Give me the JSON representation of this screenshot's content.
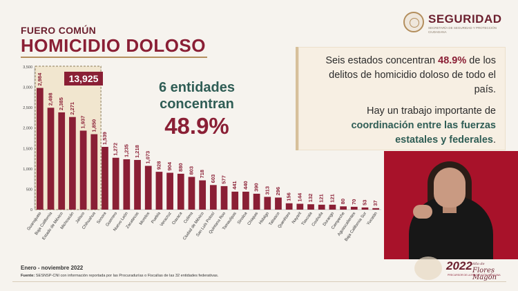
{
  "header": {
    "kicker": "FUERO COMÚN",
    "title": "HOMICIDIO DOLOSO"
  },
  "logo": {
    "name": "SEGURIDAD",
    "subtitle": "SECRETARÍA DE SEGURIDAD Y PROTECCIÓN CIUDADANA"
  },
  "highlight": {
    "total": "13,925"
  },
  "center_note": {
    "line1": "6 entidades",
    "line2": "concentran",
    "pct": "48.9%"
  },
  "infobox": {
    "p1_a": "Seis estados concentran ",
    "p1_b": "48.9%",
    "p1_c": " de los delitos de homicidio doloso de todo el país.",
    "p2_a": "Hay un trabajo importante de ",
    "p2_b": "coordinación entre las fuerzas estatales y federales",
    "p2_c": "."
  },
  "footer": {
    "period": "Enero - noviembre 2022",
    "source_label": "Fuente:",
    "source_text": " SESNSP-CNI con información reportada por las Procuradurías o Fiscalías de las 32 entidades federativas."
  },
  "year_logo": {
    "year": "2022",
    "name": "Flores Magón",
    "name_prefix": "Año de",
    "subtitle": "PRECURSOR DE LA REVOLUCIÓN MEXICANA"
  },
  "colors": {
    "bar": "#8a1f35",
    "accent_green": "#2f5d55",
    "highlight_box": "#8a1f35"
  },
  "chart_data": {
    "type": "bar",
    "ylim": [
      0,
      3500
    ],
    "yticks": [
      "0",
      "500",
      "1,000",
      "1,500",
      "2,000",
      "2,500",
      "3,000",
      "3,500"
    ],
    "ytick_values": [
      0,
      500,
      1000,
      1500,
      2000,
      2500,
      3000,
      3500
    ],
    "categories": [
      "Guanajuato",
      "Baja California",
      "Estado de México",
      "Michoacán",
      "Jalisco",
      "Chihuahua",
      "Sonora",
      "Guerrero",
      "Nuevo León",
      "Zacatecas",
      "Morelos",
      "Puebla",
      "Veracruz",
      "Oaxaca",
      "Colima",
      "Ciudad de México",
      "San Luis Potosí",
      "Quintana Roo",
      "Tamaulipas",
      "Sinaloa",
      "Chiapas",
      "Hidalgo",
      "Tabasco",
      "Querétaro",
      "Nayarit",
      "Tlaxcala",
      "Coahuila",
      "Durango",
      "Campeche",
      "Aguascalientes",
      "Baja California Sur",
      "Yucatán"
    ],
    "values": [
      2984,
      2498,
      2385,
      2271,
      1937,
      1850,
      1539,
      1272,
      1235,
      1218,
      1073,
      928,
      904,
      880,
      803,
      718,
      603,
      577,
      441,
      440,
      390,
      313,
      296,
      156,
      144,
      132,
      121,
      121,
      80,
      70,
      53,
      37
    ],
    "value_labels": [
      "2,984",
      "2,498",
      "2,385",
      "2,271",
      "1,937",
      "1,850",
      "1,539",
      "1,272",
      "1,235",
      "1,218",
      "1,073",
      "928",
      "904",
      "880",
      "803",
      "718",
      "603",
      "577",
      "441",
      "440",
      "390",
      "313",
      "296",
      "156",
      "144",
      "132",
      "121",
      "121",
      "80",
      "70",
      "53",
      "37"
    ],
    "highlighted_count": 6,
    "grid": false
  }
}
